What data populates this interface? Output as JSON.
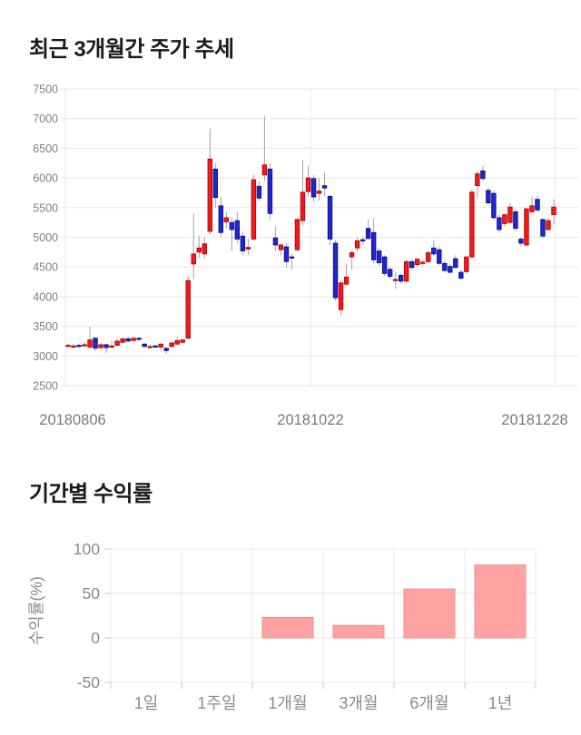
{
  "sections": {
    "price_trend_title": "최근 3개월간 주가 추세",
    "returns_title": "기간별 수익률"
  },
  "colors": {
    "candle_up": "#ef1a1a",
    "candle_up_border": "#b30000",
    "candle_down": "#1f26d2",
    "candle_down_border": "#0c0c7a",
    "wick": "#a3a3a3",
    "grid": "#e7e7e7",
    "tick": "#c9c9c9",
    "axis_text": "#7e7e7e",
    "bar_fill": "#ffa3a2",
    "bar_border": "#ef8e8d"
  },
  "chart_data": [
    {
      "type": "candlestick",
      "title": "최근 3개월간 주가 추세",
      "ylim": [
        2500,
        7500
      ],
      "y_ticks": [
        7500,
        7000,
        6500,
        6000,
        5500,
        5000,
        4500,
        4000,
        3500,
        3000,
        2500
      ],
      "x_tick_labels": [
        "20180806",
        "20181022",
        "20181228"
      ],
      "grid": true,
      "candles_format": [
        "open",
        "high",
        "low",
        "close"
      ],
      "candles": [
        [
          3170,
          3210,
          3140,
          3180
        ],
        [
          3160,
          3200,
          3130,
          3170
        ],
        [
          3180,
          3210,
          3140,
          3170
        ],
        [
          3180,
          3230,
          3160,
          3190
        ],
        [
          3150,
          3490,
          3120,
          3270
        ],
        [
          3300,
          3320,
          3080,
          3130
        ],
        [
          3140,
          3220,
          3110,
          3190
        ],
        [
          3190,
          3210,
          3050,
          3140
        ],
        [
          3150,
          3260,
          3130,
          3170
        ],
        [
          3180,
          3300,
          3160,
          3250
        ],
        [
          3230,
          3310,
          3200,
          3290
        ],
        [
          3290,
          3330,
          3230,
          3250
        ],
        [
          3260,
          3320,
          3240,
          3300
        ],
        [
          3300,
          3310,
          3250,
          3280
        ],
        [
          3200,
          3220,
          3140,
          3160
        ],
        [
          3150,
          3190,
          3130,
          3160
        ],
        [
          3170,
          3190,
          3140,
          3150
        ],
        [
          3150,
          3220,
          3080,
          3200
        ],
        [
          3130,
          3150,
          3040,
          3090
        ],
        [
          3160,
          3240,
          3120,
          3220
        ],
        [
          3200,
          3320,
          3180,
          3260
        ],
        [
          3230,
          3290,
          3210,
          3270
        ],
        [
          3300,
          4350,
          3280,
          4270
        ],
        [
          4550,
          5400,
          4300,
          4720
        ],
        [
          4750,
          5030,
          4650,
          4820
        ],
        [
          4720,
          5000,
          4640,
          4890
        ],
        [
          5100,
          6830,
          5050,
          6320
        ],
        [
          6150,
          6250,
          5500,
          5670
        ],
        [
          5530,
          5680,
          5000,
          5080
        ],
        [
          5260,
          5430,
          5150,
          5330
        ],
        [
          5250,
          5330,
          4770,
          5130
        ],
        [
          5280,
          5430,
          4900,
          4970
        ],
        [
          5020,
          5100,
          4700,
          4770
        ],
        [
          4800,
          4980,
          4700,
          4830
        ],
        [
          4970,
          6050,
          4940,
          5970
        ],
        [
          5860,
          5950,
          5600,
          5660
        ],
        [
          6050,
          7050,
          5950,
          6220
        ],
        [
          6150,
          6250,
          5300,
          5400
        ],
        [
          4990,
          5180,
          4770,
          4870
        ],
        [
          4790,
          4900,
          4700,
          4870
        ],
        [
          4840,
          4900,
          4490,
          4590
        ],
        [
          4670,
          4720,
          4460,
          4650
        ],
        [
          4790,
          5330,
          4760,
          5300
        ],
        [
          5280,
          6300,
          5200,
          5760
        ],
        [
          5770,
          6200,
          5690,
          6000
        ],
        [
          5990,
          6050,
          5600,
          5680
        ],
        [
          5740,
          6000,
          5620,
          5780
        ],
        [
          5870,
          6100,
          5700,
          5830
        ],
        [
          5690,
          5720,
          4870,
          4970
        ],
        [
          4900,
          4950,
          3930,
          3980
        ],
        [
          3780,
          4280,
          3680,
          4230
        ],
        [
          4210,
          4560,
          4180,
          4330
        ],
        [
          4670,
          4790,
          4460,
          4740
        ],
        [
          4820,
          5000,
          4760,
          4940
        ],
        [
          4960,
          5010,
          4880,
          4940
        ],
        [
          5150,
          5300,
          4950,
          4980
        ],
        [
          5080,
          5330,
          4560,
          4620
        ],
        [
          4770,
          4820,
          4520,
          4570
        ],
        [
          4670,
          4700,
          4350,
          4390
        ],
        [
          4460,
          4500,
          4300,
          4340
        ],
        [
          4280,
          4420,
          4130,
          4290
        ],
        [
          4360,
          4400,
          4220,
          4260
        ],
        [
          4260,
          4620,
          4230,
          4590
        ],
        [
          4590,
          4630,
          4450,
          4490
        ],
        [
          4540,
          4660,
          4500,
          4630
        ],
        [
          4560,
          4620,
          4520,
          4580
        ],
        [
          4590,
          4780,
          4560,
          4740
        ],
        [
          4820,
          4950,
          4680,
          4720
        ],
        [
          4790,
          4850,
          4520,
          4560
        ],
        [
          4560,
          4600,
          4410,
          4440
        ],
        [
          4510,
          4560,
          4390,
          4410
        ],
        [
          4640,
          4700,
          4480,
          4490
        ],
        [
          4410,
          4450,
          4280,
          4310
        ],
        [
          4420,
          4670,
          4390,
          4670
        ],
        [
          4670,
          5810,
          4630,
          5760
        ],
        [
          5870,
          6120,
          5660,
          6070
        ],
        [
          6120,
          6200,
          5950,
          5990
        ],
        [
          5790,
          5840,
          5550,
          5580
        ],
        [
          5740,
          5780,
          5300,
          5330
        ],
        [
          5330,
          5380,
          5080,
          5130
        ],
        [
          5230,
          5400,
          5180,
          5380
        ],
        [
          5250,
          5580,
          5220,
          5510
        ],
        [
          5430,
          5480,
          5100,
          5150
        ],
        [
          4970,
          5000,
          4850,
          4900
        ],
        [
          4870,
          5500,
          4840,
          5480
        ],
        [
          5430,
          5690,
          5400,
          5530
        ],
        [
          5640,
          5700,
          5430,
          5460
        ],
        [
          5300,
          5320,
          4990,
          5020
        ],
        [
          5130,
          5330,
          5100,
          5280
        ],
        [
          5380,
          5640,
          5230,
          5510
        ]
      ]
    },
    {
      "type": "bar",
      "title": "기간별 수익률",
      "ylabel": "수익률(%)",
      "xlabel": "",
      "categories": [
        "1일",
        "1주일",
        "1개월",
        "3개월",
        "6개월",
        "1년"
      ],
      "values": [
        0,
        0,
        23,
        14,
        55,
        82
      ],
      "ylim": [
        -50,
        100
      ],
      "y_ticks": [
        100,
        50,
        0,
        -50
      ],
      "grid": true,
      "legend": false
    }
  ]
}
